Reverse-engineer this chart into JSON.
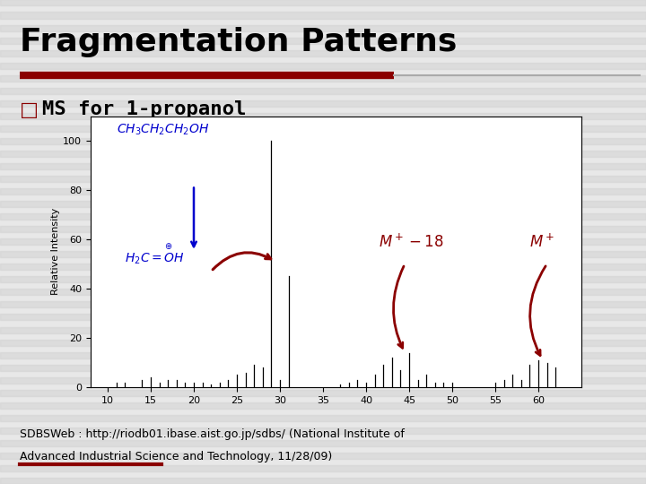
{
  "title": "Fragmentation Patterns",
  "subtitle": "MS for 1-propanol",
  "bg_color": "#e8e8e8",
  "stripe_color": "#d0d0d0",
  "title_color": "#000000",
  "subtitle_color": "#000000",
  "subtitle_box_color": "#8B0000",
  "title_underline_color": "#8B0000",
  "ylabel": "Relative Intensity",
  "xlim": [
    8,
    65
  ],
  "ylim": [
    0,
    110
  ],
  "yticks": [
    0,
    20,
    40,
    60,
    80,
    100
  ],
  "xticks": [
    10,
    15,
    20,
    25,
    30,
    35,
    40,
    45,
    50,
    55,
    60
  ],
  "ms_peaks": [
    [
      11,
      2
    ],
    [
      12,
      2
    ],
    [
      14,
      3
    ],
    [
      15,
      4
    ],
    [
      16,
      2
    ],
    [
      17,
      3
    ],
    [
      18,
      3
    ],
    [
      19,
      2
    ],
    [
      20,
      2
    ],
    [
      21,
      2
    ],
    [
      22,
      1
    ],
    [
      23,
      2
    ],
    [
      24,
      3
    ],
    [
      25,
      5
    ],
    [
      26,
      6
    ],
    [
      27,
      9
    ],
    [
      28,
      8
    ],
    [
      29,
      100
    ],
    [
      30,
      3
    ],
    [
      31,
      45
    ],
    [
      37,
      1
    ],
    [
      38,
      2
    ],
    [
      39,
      3
    ],
    [
      40,
      2
    ],
    [
      41,
      5
    ],
    [
      42,
      9
    ],
    [
      43,
      12
    ],
    [
      44,
      7
    ],
    [
      45,
      14
    ],
    [
      46,
      3
    ],
    [
      47,
      5
    ],
    [
      48,
      2
    ],
    [
      49,
      2
    ],
    [
      50,
      2
    ],
    [
      55,
      2
    ],
    [
      56,
      3
    ],
    [
      57,
      5
    ],
    [
      58,
      3
    ],
    [
      59,
      9
    ],
    [
      60,
      11
    ],
    [
      61,
      10
    ],
    [
      62,
      8
    ]
  ],
  "bar_color": "#000000",
  "blue": "#0000CD",
  "red": "#8B0000",
  "source_text1": "SDBSWeb : http://riodb01.ibase.aist.go.jp/sdbs/ (National Institute of",
  "source_text2": "Advanced Industrial Science and Technology, 11/28/09)"
}
